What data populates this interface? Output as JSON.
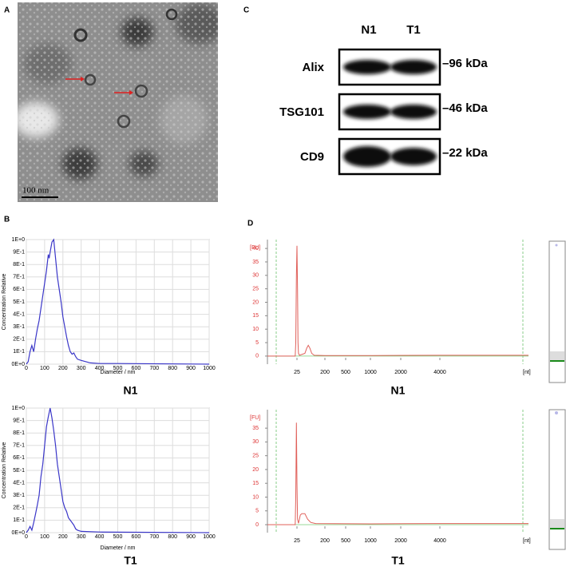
{
  "figure": {
    "panel_labels": [
      "A",
      "B",
      "C",
      "D"
    ],
    "scale_bar": "100 nm",
    "blot": {
      "samples": [
        "N1",
        "T1"
      ],
      "rows": [
        {
          "protein": "Alix",
          "size": "–96 kDa"
        },
        {
          "protein": "TSG101",
          "size": "–46 kDa"
        },
        {
          "protein": "CD9",
          "size": "–22 kDa"
        }
      ]
    }
  },
  "chart_data": [
    {
      "type": "line",
      "title": "N1",
      "xlabel": "Diameter / nm",
      "ylabel": "Concentration Relative",
      "color": "#3a36c8",
      "grid": true,
      "x": [
        0,
        10,
        20,
        30,
        40,
        50,
        60,
        70,
        80,
        90,
        100,
        110,
        120,
        125,
        130,
        140,
        150,
        160,
        170,
        180,
        190,
        200,
        210,
        220,
        230,
        240,
        250,
        260,
        270,
        280,
        300,
        350,
        400,
        500,
        1000
      ],
      "values": [
        0,
        0.02,
        0.1,
        0.15,
        0.1,
        0.2,
        0.28,
        0.35,
        0.45,
        0.55,
        0.65,
        0.75,
        0.88,
        0.85,
        0.9,
        0.98,
        1,
        0.85,
        0.7,
        0.6,
        0.5,
        0.38,
        0.3,
        0.22,
        0.15,
        0.1,
        0.08,
        0.09,
        0.06,
        0.04,
        0.03,
        0.01,
        0.005,
        0.005,
        0
      ],
      "xlim": [
        0,
        1000
      ],
      "ylim": [
        0,
        1
      ],
      "xticks": [
        0,
        100,
        200,
        300,
        400,
        500,
        600,
        700,
        800,
        900,
        1000
      ],
      "yticks": [
        {
          "value": 0,
          "label": "0E+0"
        },
        {
          "value": 0.1,
          "label": "1E-1"
        },
        {
          "value": 0.2,
          "label": "2E-1"
        },
        {
          "value": 0.3,
          "label": "3E-1"
        },
        {
          "value": 0.4,
          "label": "4E-1"
        },
        {
          "value": 0.5,
          "label": "5E-1"
        },
        {
          "value": 0.6,
          "label": "6E-1"
        },
        {
          "value": 0.7,
          "label": "7E-1"
        },
        {
          "value": 0.8,
          "label": "8E-1"
        },
        {
          "value": 0.9,
          "label": "9E-1"
        },
        {
          "value": 1,
          "label": "1E+0"
        }
      ]
    },
    {
      "type": "line",
      "title": "T1",
      "xlabel": "Diameter / nm",
      "ylabel": "Concentration Relative",
      "color": "#3a36c8",
      "grid": true,
      "x": [
        0,
        10,
        20,
        30,
        40,
        50,
        60,
        70,
        80,
        90,
        100,
        110,
        120,
        130,
        140,
        150,
        160,
        170,
        180,
        190,
        200,
        210,
        220,
        230,
        240,
        250,
        260,
        270,
        280,
        300,
        400,
        1000
      ],
      "values": [
        0,
        0.02,
        0.05,
        0.02,
        0.08,
        0.15,
        0.22,
        0.3,
        0.45,
        0.55,
        0.7,
        0.85,
        0.93,
        1,
        0.92,
        0.82,
        0.7,
        0.55,
        0.45,
        0.35,
        0.25,
        0.2,
        0.17,
        0.12,
        0.1,
        0.08,
        0.06,
        0.03,
        0.02,
        0.01,
        0.005,
        0
      ],
      "xlim": [
        0,
        1000
      ],
      "ylim": [
        0,
        1
      ],
      "xticks": [
        0,
        100,
        200,
        300,
        400,
        500,
        600,
        700,
        800,
        900,
        1000
      ],
      "yticks": [
        {
          "value": 0,
          "label": "0E+0"
        },
        {
          "value": 0.1,
          "label": "1E-1"
        },
        {
          "value": 0.2,
          "label": "2E-1"
        },
        {
          "value": 0.3,
          "label": "3E-1"
        },
        {
          "value": 0.4,
          "label": "4E-1"
        },
        {
          "value": 0.5,
          "label": "5E-1"
        },
        {
          "value": 0.6,
          "label": "6E-1"
        },
        {
          "value": 0.7,
          "label": "7E-1"
        },
        {
          "value": 0.8,
          "label": "8E-1"
        },
        {
          "value": 0.9,
          "label": "9E-1"
        },
        {
          "value": 1,
          "label": "1E+0"
        }
      ]
    },
    {
      "type": "electropherogram",
      "title": "N1",
      "ylabel": "[FU]",
      "xlabel": "[nt]",
      "color": "#e0605a",
      "x": [
        3,
        22,
        23,
        24,
        25,
        26,
        27,
        28,
        30,
        45,
        52,
        58,
        65,
        75,
        90,
        200,
        1000,
        4000,
        19000
      ],
      "values": [
        0,
        0,
        5,
        30,
        41,
        25,
        5,
        1,
        0.3,
        1,
        3,
        4,
        3,
        1,
        0.3,
        0.2,
        0.2,
        0.3,
        0.3
      ],
      "xlim": [
        3,
        19000
      ],
      "ylim": [
        -3,
        43.3
      ],
      "xticks": [
        25,
        200,
        500,
        1000,
        2000,
        4000
      ],
      "yticks": [
        0,
        5,
        10,
        15,
        20,
        25,
        30,
        35,
        40
      ]
    },
    {
      "type": "electropherogram",
      "title": "T1",
      "ylabel": "[FU]",
      "xlabel": "[nt]",
      "color": "#e0605a",
      "x": [
        3,
        22,
        23,
        24,
        25,
        26,
        28,
        32,
        36,
        45,
        55,
        70,
        100,
        1000,
        4000,
        19000
      ],
      "values": [
        0,
        0,
        10,
        37,
        15,
        2,
        0.5,
        3.5,
        4,
        4,
        2,
        0.8,
        0.4,
        0.3,
        0.4,
        0.4
      ],
      "xlim": [
        3,
        19000
      ],
      "ylim": [
        -2.9,
        41.7
      ],
      "xticks": [
        25,
        200,
        500,
        1000,
        2000,
        4000
      ],
      "yticks": [
        0,
        5,
        10,
        15,
        20,
        25,
        30,
        35
      ]
    }
  ]
}
